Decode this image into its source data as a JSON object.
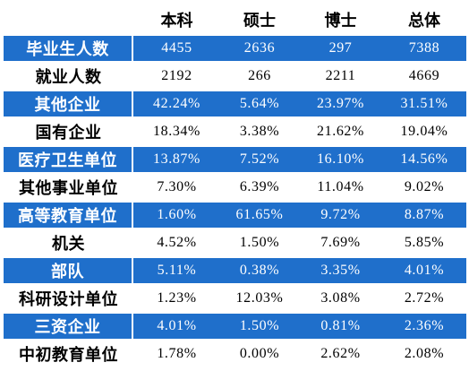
{
  "table": {
    "headers": [
      "",
      "本科",
      "硕士",
      "博士",
      "总体"
    ],
    "rows": [
      {
        "label": "毕业生人数",
        "values": [
          "4455",
          "2636",
          "297",
          "7388"
        ]
      },
      {
        "label": "就业人数",
        "values": [
          "2192",
          "266",
          "2211",
          "4669"
        ]
      },
      {
        "label": "其他企业",
        "values": [
          "42.24%",
          "5.64%",
          "23.97%",
          "31.51%"
        ]
      },
      {
        "label": "国有企业",
        "values": [
          "18.34%",
          "3.38%",
          "21.62%",
          "19.04%"
        ]
      },
      {
        "label": "医疗卫生单位",
        "values": [
          "13.87%",
          "7.52%",
          "16.10%",
          "14.56%"
        ]
      },
      {
        "label": "其他事业单位",
        "values": [
          "7.30%",
          "6.39%",
          "11.04%",
          "9.02%"
        ]
      },
      {
        "label": "高等教育单位",
        "values": [
          "1.60%",
          "61.65%",
          "9.72%",
          "8.87%"
        ]
      },
      {
        "label": "机关",
        "values": [
          "4.52%",
          "1.50%",
          "7.69%",
          "5.85%"
        ]
      },
      {
        "label": "部队",
        "values": [
          "5.11%",
          "0.38%",
          "3.35%",
          "4.01%"
        ]
      },
      {
        "label": "科研设计单位",
        "values": [
          "1.23%",
          "12.03%",
          "3.08%",
          "2.72%"
        ]
      },
      {
        "label": "三资企业",
        "values": [
          "4.01%",
          "1.50%",
          "0.81%",
          "2.36%"
        ]
      },
      {
        "label": "中初教育单位",
        "values": [
          "1.78%",
          "0.00%",
          "2.62%",
          "2.08%"
        ]
      }
    ]
  },
  "colors": {
    "band_blue": "#1f6fcb",
    "band_text": "#ffffff",
    "plain_text": "#000000"
  }
}
